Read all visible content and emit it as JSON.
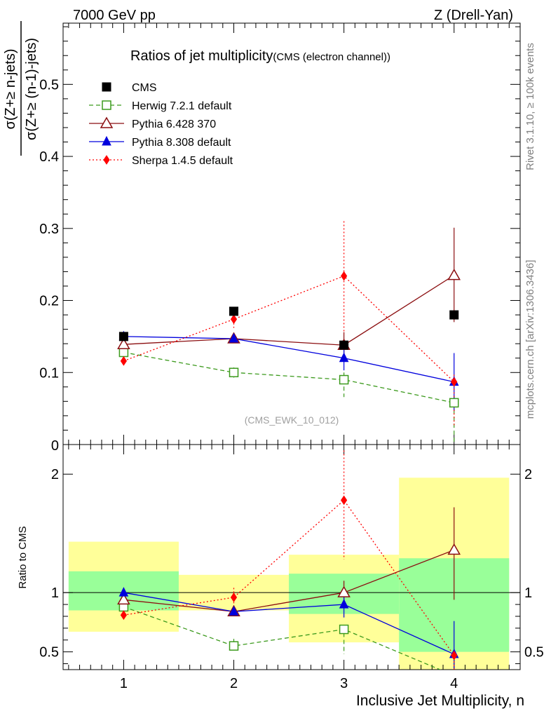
{
  "header": {
    "left": "7000 GeV pp",
    "right": "Z (Drell-Yan)"
  },
  "side_text": {
    "rivet": "Rivet 3.1.10, ≥ 100k events",
    "mcplots": "mcplots.cern.ch [arXiv:1306.3436]"
  },
  "chart_data": {
    "type": "line",
    "title": "Ratios of jet multiplicity",
    "title_sub": "(CMS (electron channel))",
    "analysis_tag": "(CMS_EWK_10_012)",
    "xlabel": "Inclusive Jet Multiplicity, n",
    "ylabel_num": "σ(Z+≥ n-jets)",
    "ylabel_den": "σ(Z+≥ (n-1)-jets)",
    "ratio_ylabel": "Ratio to CMS",
    "x": [
      1,
      2,
      3,
      4
    ],
    "xlim": [
      0.45,
      4.6
    ],
    "ylim": [
      0,
      0.585
    ],
    "ratio_ylim": [
      0.35,
      2.25
    ],
    "x_ticklabels": [
      "1",
      "2",
      "3",
      "4"
    ],
    "y_ticks": [
      0.1,
      0.2,
      0.3,
      0.4,
      0.5
    ],
    "y_ticklabels": [
      "0.1",
      "0.2",
      "0.3",
      "0.4",
      "0.5"
    ],
    "y_zero_label": "0",
    "ratio_ticks": [
      0.5,
      1,
      2
    ],
    "ratio_ticklabels": [
      "0.5",
      "1",
      "2"
    ],
    "data": {
      "name": "CMS",
      "color": "#000000",
      "values": [
        0.15,
        0.185,
        0.138,
        0.18
      ],
      "band_inner": [
        [
          0.85,
          1.18
        ],
        [
          1.07,
          1.07
        ],
        [
          0.82,
          1.16
        ],
        [
          0.5,
          1.29
        ]
      ],
      "band_outer": [
        [
          0.67,
          1.43
        ],
        [
          0.85,
          1.15
        ],
        [
          0.58,
          1.32
        ],
        [
          0.35,
          1.97
        ]
      ],
      "band_inner_color": "#99ff99",
      "band_outer_color": "#ffff99"
    },
    "series": [
      {
        "name": "Herwig 7.2.1 default",
        "color": "#3c9a1d",
        "marker": "open-square",
        "dash": "6,4",
        "values": [
          0.128,
          0.1,
          0.09,
          0.058
        ],
        "err_lo": [
          0.004,
          0.007,
          0.024,
          0.06
        ],
        "err_hi": [
          0.004,
          0.007,
          0.01,
          0.01
        ],
        "ratio": [
          0.88,
          0.55,
          0.69,
          0.3
        ],
        "ratio_err_lo": [
          0.02,
          0.04,
          0.21,
          0.0
        ],
        "ratio_err_hi": [
          0.02,
          0.06,
          0.03,
          0.0
        ]
      },
      {
        "name": "Pythia 6.428 370",
        "color": "#8b0e10",
        "marker": "open-triangle",
        "dash": "",
        "values": [
          0.139,
          0.147,
          0.138,
          0.235
        ],
        "err_lo": [
          0.002,
          0.004,
          0.012,
          0.065
        ],
        "err_hi": [
          0.002,
          0.004,
          0.018,
          0.066
        ],
        "ratio": [
          0.94,
          0.84,
          1.0,
          1.36
        ],
        "ratio_err_lo": [
          0.02,
          0.03,
          0.1,
          0.42
        ],
        "ratio_err_hi": [
          0.02,
          0.03,
          0.1,
          0.36
        ]
      },
      {
        "name": "Pythia 8.308 default",
        "color": "#0000dd",
        "marker": "filled-triangle",
        "dash": "",
        "values": [
          0.15,
          0.147,
          0.12,
          0.087
        ],
        "err_lo": [
          0.002,
          0.004,
          0.017,
          0.04
        ],
        "err_hi": [
          0.002,
          0.004,
          0.016,
          0.04
        ],
        "ratio": [
          1.0,
          0.84,
          0.9,
          0.48
        ],
        "ratio_err_lo": [
          0.02,
          0.03,
          0.11,
          0.22
        ],
        "ratio_err_hi": [
          0.02,
          0.03,
          0.11,
          0.28
        ]
      },
      {
        "name": "Sherpa 1.4.5 default",
        "color": "#ff0000",
        "marker": "diamond",
        "dash": "2,3",
        "values": [
          0.116,
          0.174,
          0.234,
          0.087
        ],
        "err_lo": [
          0.002,
          0.012,
          0.08,
          0.06
        ],
        "err_hi": [
          0.002,
          0.014,
          0.076,
          0.01
        ],
        "ratio": [
          0.81,
          0.96,
          1.78,
          0.47
        ],
        "ratio_err_lo": [
          0.02,
          0.08,
          0.5,
          0.12
        ],
        "ratio_err_hi": [
          0.02,
          0.08,
          0.42,
          0.04
        ]
      }
    ],
    "legend": [
      "CMS",
      "Herwig 7.2.1 default",
      "Pythia 6.428 370",
      "Pythia 8.308 default",
      "Sherpa 1.4.5 default"
    ]
  }
}
